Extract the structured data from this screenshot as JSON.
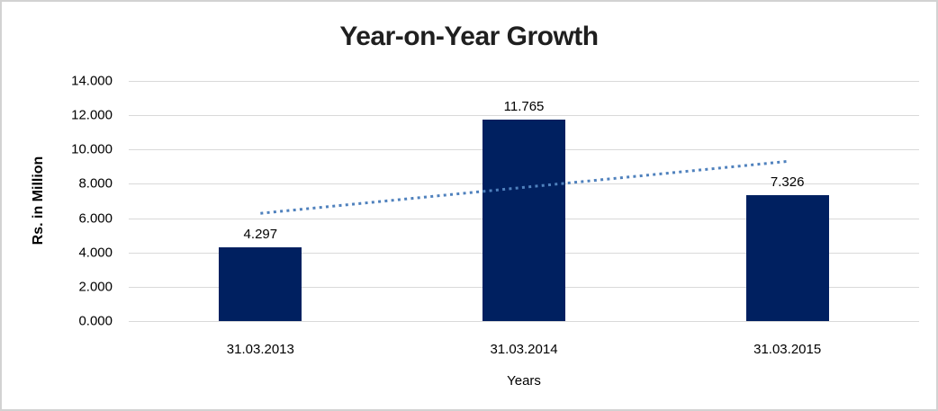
{
  "chart_data": {
    "type": "bar",
    "title": "Year-on-Year Growth",
    "xlabel": "Years",
    "ylabel": "Rs. in Million",
    "categories": [
      "31.03.2013",
      "31.03.2014",
      "31.03.2015"
    ],
    "values": [
      4.297,
      11.765,
      7.326
    ],
    "data_labels": [
      "4.297",
      "11.765",
      "7.326"
    ],
    "ylim": [
      0,
      14
    ],
    "ytick_values": [
      0,
      2,
      4,
      6,
      8,
      10,
      12,
      14
    ],
    "ytick_labels": [
      "0.000",
      "2.000",
      "4.000",
      "6.000",
      "8.000",
      "10.000",
      "12.000",
      "14.000"
    ],
    "grid": true,
    "legend_position": "none",
    "bar_color": "#002060",
    "gridline_color": "#d9d9d9",
    "trendline": {
      "type": "linear",
      "style": "dotted",
      "color": "#4f81bd",
      "start_value": 6.2815,
      "end_value": 9.3105
    }
  }
}
